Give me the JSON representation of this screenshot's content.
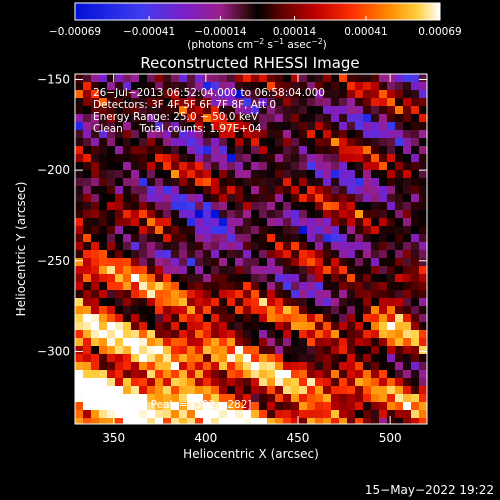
{
  "chart_data": {
    "type": "heatmap",
    "title": "Reconstructed RHESSI Image",
    "xlabel": "Heliocentric X (arcsec)",
    "ylabel": "Heliocentric Y (arcsec)",
    "xlim": [
      329,
      520
    ],
    "ylim": [
      -340,
      -147
    ],
    "x_ticks": [
      350,
      400,
      450,
      500
    ],
    "y_ticks": [
      -150,
      -200,
      -250,
      -300
    ],
    "x_tick_labels": [
      "350",
      "400",
      "450",
      "500"
    ],
    "y_tick_labels": [
      "−150",
      "−200",
      "−250",
      "−300"
    ],
    "colorbar": {
      "range": [
        -0.00069,
        0.00069
      ],
      "tick_values": [
        -0.00069,
        -0.00041,
        -0.00014,
        0.00014,
        0.00041,
        0.00069
      ],
      "tick_labels": [
        "−0.00069",
        "−0.00041",
        "−0.00014",
        "0.00014",
        "0.00041",
        "0.00069"
      ],
      "units_prefix": "(photons cm",
      "units_exp1": "−2",
      "units_mid1": " s",
      "units_exp2": "−1",
      "units_mid2": " asec",
      "units_exp3": "−2",
      "units_suffix": ")",
      "colors": [
        "#0010d8",
        "#3f3cf0",
        "#7a1fc8",
        "#9a1f8a",
        "#3a0a14",
        "#000000",
        "#5a0000",
        "#c00000",
        "#ff3000",
        "#ff8a00",
        "#ffd040",
        "#ffffff"
      ]
    },
    "annotations": {
      "line1": "26−Jul−2013 06:52:04.000 to 06:58:04.000",
      "line2": "Detectors: 3F 4F 5F 6F 7F 8F, Att 0",
      "line3": "Energy Range: 25.0 − 50.0 keV",
      "line4": "Clean     Total counts: 1.97E+04",
      "peak": "Position of Peak = [502,−282]"
    },
    "peak_position": [
      502,
      -282
    ],
    "total_counts": 19700
  },
  "footer": {
    "date": "15−May−2022 19:22"
  }
}
